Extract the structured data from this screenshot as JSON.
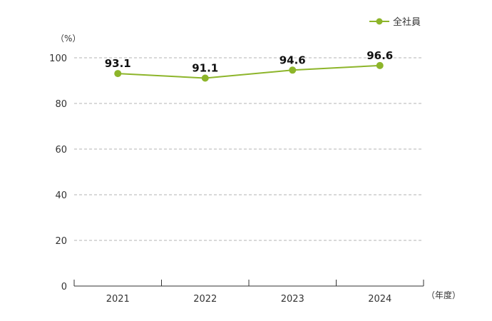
{
  "chart_data": {
    "type": "line",
    "categories": [
      "2021",
      "2022",
      "2023",
      "2024"
    ],
    "series": [
      {
        "name": "全社員",
        "values": [
          93.1,
          91.1,
          94.6,
          96.6
        ],
        "color": "#8db52a"
      }
    ],
    "data_labels": [
      "93.1",
      "91.1",
      "94.6",
      "96.6"
    ],
    "ylabel": "（%）",
    "xlabel": "（年度）",
    "ylim": [
      0,
      100
    ],
    "yticks": [
      "0",
      "20",
      "40",
      "60",
      "80",
      "100"
    ],
    "grid": true,
    "legend_position": "top-right"
  }
}
